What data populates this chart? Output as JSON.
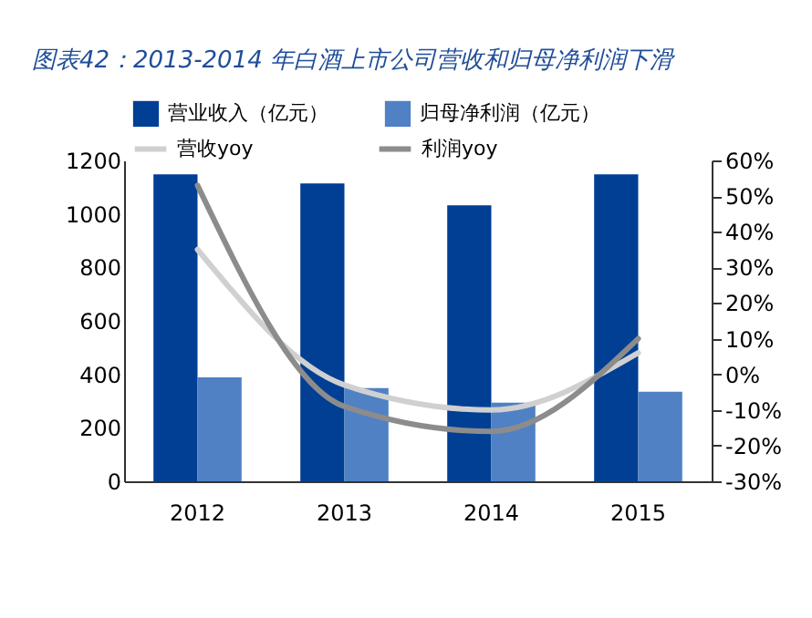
{
  "chart_data": {
    "type": "bar",
    "title": "图表42：2013-2014 年白酒上市公司营收和归母净利润下滑",
    "categories": [
      "2012",
      "2013",
      "2014",
      "2015"
    ],
    "series": [
      {
        "name": "营业收入（亿元）",
        "color": "#003f94",
        "values": [
          1148,
          1114,
          1032,
          1148
        ]
      },
      {
        "name": "归母净利润（亿元）",
        "color": "#4f81c4",
        "values": [
          389,
          349,
          294,
          335
        ]
      },
      {
        "name": "营收yoy",
        "type": "line",
        "axis": "y2",
        "color": "#d0d0d0",
        "values": [
          35,
          -3,
          -10,
          6
        ]
      },
      {
        "name": "利润yoy",
        "type": "line",
        "axis": "y2",
        "color": "#8c8c8c",
        "values": [
          53,
          -9,
          -16,
          10
        ]
      }
    ],
    "ylim": [
      0,
      1200
    ],
    "yticks": [
      0,
      200,
      400,
      600,
      800,
      1000,
      1200
    ],
    "y2lim": [
      -30,
      60
    ],
    "y2ticks": [
      {
        "value": -30,
        "label": "-30%"
      },
      {
        "value": -20,
        "label": "-20%"
      },
      {
        "value": -10,
        "label": "-10%"
      },
      {
        "value": 0,
        "label": "0%"
      },
      {
        "value": 10,
        "label": "10%"
      },
      {
        "value": 20,
        "label": "20%"
      },
      {
        "value": 30,
        "label": "30%"
      },
      {
        "value": 40,
        "label": "40%"
      },
      {
        "value": 50,
        "label": "50%"
      },
      {
        "value": 60,
        "label": "60%"
      }
    ],
    "grid": false,
    "legend": "top",
    "marker": "none",
    "line_style": "solid"
  }
}
